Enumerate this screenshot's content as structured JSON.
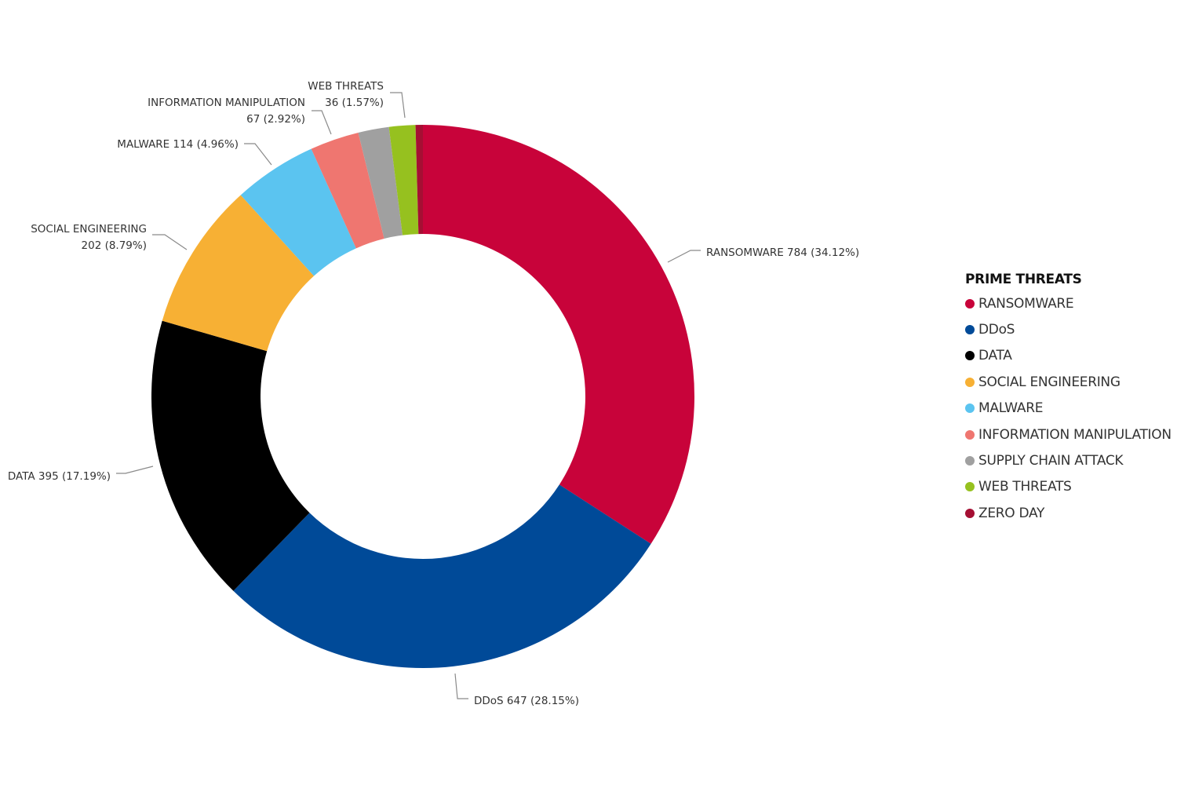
{
  "chart_data": {
    "type": "pie",
    "donut": true,
    "title": "",
    "legend_title": "PRIME THREATS",
    "legend_position": "right",
    "slices": [
      {
        "name": "RANSOMWARE",
        "value": 784,
        "percent": "34.12%",
        "color": "#C8033A",
        "label": "RANSOMWARE 784 (34.12%)"
      },
      {
        "name": "DDoS",
        "value": 647,
        "percent": "28.15%",
        "color": "#004A98",
        "label": "DDoS 647 (28.15%)"
      },
      {
        "name": "DATA",
        "value": 395,
        "percent": "17.19%",
        "color": "#000000",
        "label": "DATA 395 (17.19%)"
      },
      {
        "name": "SOCIAL ENGINEERING",
        "value": 202,
        "percent": "8.79%",
        "color": "#F7B034",
        "label": "SOCIAL ENGINEERING",
        "label_line2": "202 (8.79%)"
      },
      {
        "name": "MALWARE",
        "value": 114,
        "percent": "4.96%",
        "color": "#5BC4F0",
        "label": "MALWARE 114 (4.96%)"
      },
      {
        "name": "INFORMATION MANIPULATION",
        "value": 67,
        "percent": "2.92%",
        "color": "#EF7670",
        "label": "INFORMATION MANIPULATION",
        "label_line2": "67 (2.92%)"
      },
      {
        "name": "SUPPLY CHAIN ATTACK",
        "value": 42,
        "percent": "",
        "color": "#A0A0A0",
        "label": ""
      },
      {
        "name": "WEB THREATS",
        "value": 36,
        "percent": "1.57%",
        "color": "#96C11F",
        "label": "WEB THREATS",
        "label_line2": "36 (1.57%)"
      },
      {
        "name": "ZERO DAY",
        "value": 10,
        "percent": "",
        "color": "#A50F33",
        "label": ""
      }
    ]
  }
}
